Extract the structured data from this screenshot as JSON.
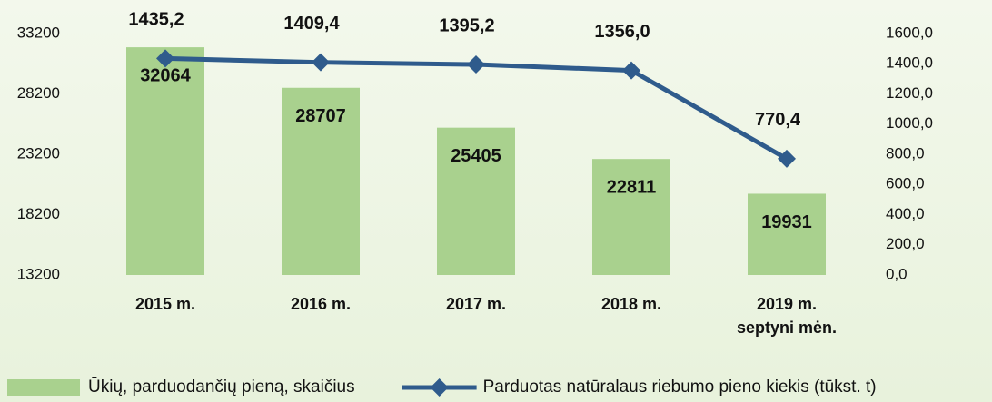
{
  "chart_data": {
    "type": "bar",
    "categories": [
      "2015 m.",
      "2016 m.",
      "2017 m.",
      "2018 m.",
      "2019 m.\nseptyni mėn."
    ],
    "series": [
      {
        "name": "Ūkių, parduodančių pieną, skaičius",
        "type": "bar",
        "color": "#a9d18e",
        "values": [
          32064,
          28707,
          25405,
          22811,
          19931
        ]
      },
      {
        "name": "Parduotas natūralaus riebumo pieno kiekis (tūkst. t)",
        "type": "line",
        "axis": "y2",
        "color": "#2f5b8c",
        "values": [
          1435.2,
          1409.4,
          1395.2,
          1356.0,
          770.4
        ],
        "value_labels": [
          "1435,2",
          "1409,4",
          "1395,2",
          "1356,0",
          "770,4"
        ]
      }
    ],
    "ylim": [
      13200,
      33200
    ],
    "yticks": [
      13200,
      18200,
      23200,
      28200,
      33200
    ],
    "y2lim": [
      0,
      1600
    ],
    "y2ticks": [
      {
        "value": 0,
        "label": "0,0"
      },
      {
        "value": 200,
        "label": "200,0"
      },
      {
        "value": 400,
        "label": "400,0"
      },
      {
        "value": 600,
        "label": "600,0"
      },
      {
        "value": 800,
        "label": "800,0"
      },
      {
        "value": 1000,
        "label": "1000,0"
      },
      {
        "value": 1200,
        "label": "1200,0"
      },
      {
        "value": 1400,
        "label": "1400,0"
      },
      {
        "value": 1600,
        "label": "1600,0"
      }
    ],
    "legend": "bottom"
  }
}
